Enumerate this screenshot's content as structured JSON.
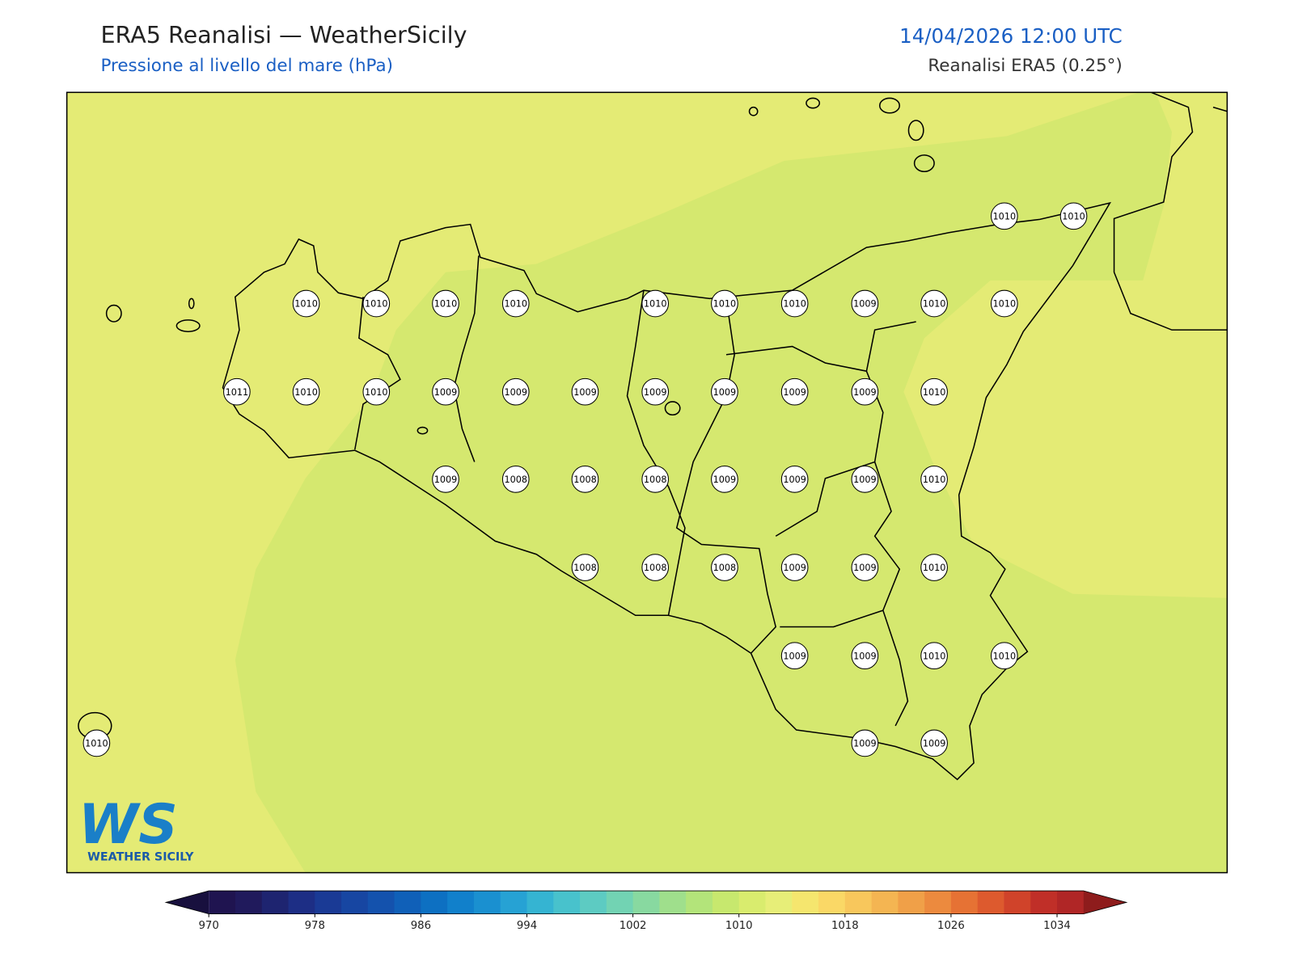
{
  "header": {
    "title": "ERA5 Reanalisi — WeatherSicily",
    "subtitle": "Pressione al livello del mare (hPa)",
    "date": "14/04/2026 12:00 UTC",
    "source": "Reanalisi ERA5 (0.25°)"
  },
  "map": {
    "station_values": [
      1010,
      1010,
      1010,
      1010,
      1010,
      1010,
      1010,
      1010,
      1010,
      1009,
      1010,
      1010,
      1011,
      1010,
      1010,
      1009,
      1009,
      1009,
      1009,
      1009,
      1009,
      1009,
      1010,
      1009,
      1008,
      1008,
      1008,
      1009,
      1009,
      1009,
      1010,
      1008,
      1008,
      1008,
      1009,
      1009,
      1010,
      1009,
      1009,
      1010,
      1010,
      1010,
      1009,
      1009
    ],
    "field_colors": [
      "#e4eb75",
      "#d5e86f"
    ]
  },
  "colorbar": {
    "lim": [
      970,
      1036
    ],
    "ticks": [
      970,
      978,
      986,
      994,
      1002,
      1010,
      1018,
      1026,
      1034
    ],
    "colors": [
      "#1f1450",
      "#201a5c",
      "#1e2470",
      "#1d2e85",
      "#1a3a95",
      "#1746a2",
      "#1452ad",
      "#1060b8",
      "#0d70c2",
      "#1180cb",
      "#1a90d0",
      "#26a2d4",
      "#35b4d2",
      "#48c2cc",
      "#5dcbc2",
      "#72d3b3",
      "#88d9a0",
      "#9fdf8c",
      "#b3e47a",
      "#c7e86e",
      "#d9ec6e",
      "#e7ee78",
      "#f5e66e",
      "#fad866",
      "#f8c75c",
      "#f4b552",
      "#f0a048",
      "#ec8a3e",
      "#e67234",
      "#dd5a2e",
      "#d0432a",
      "#c02f28",
      "#b02626"
    ],
    "extend_colors": [
      "#18103e",
      "#8e1c1c"
    ]
  },
  "logo": {
    "mark": "WS",
    "text": "WEATHER SICILY"
  }
}
